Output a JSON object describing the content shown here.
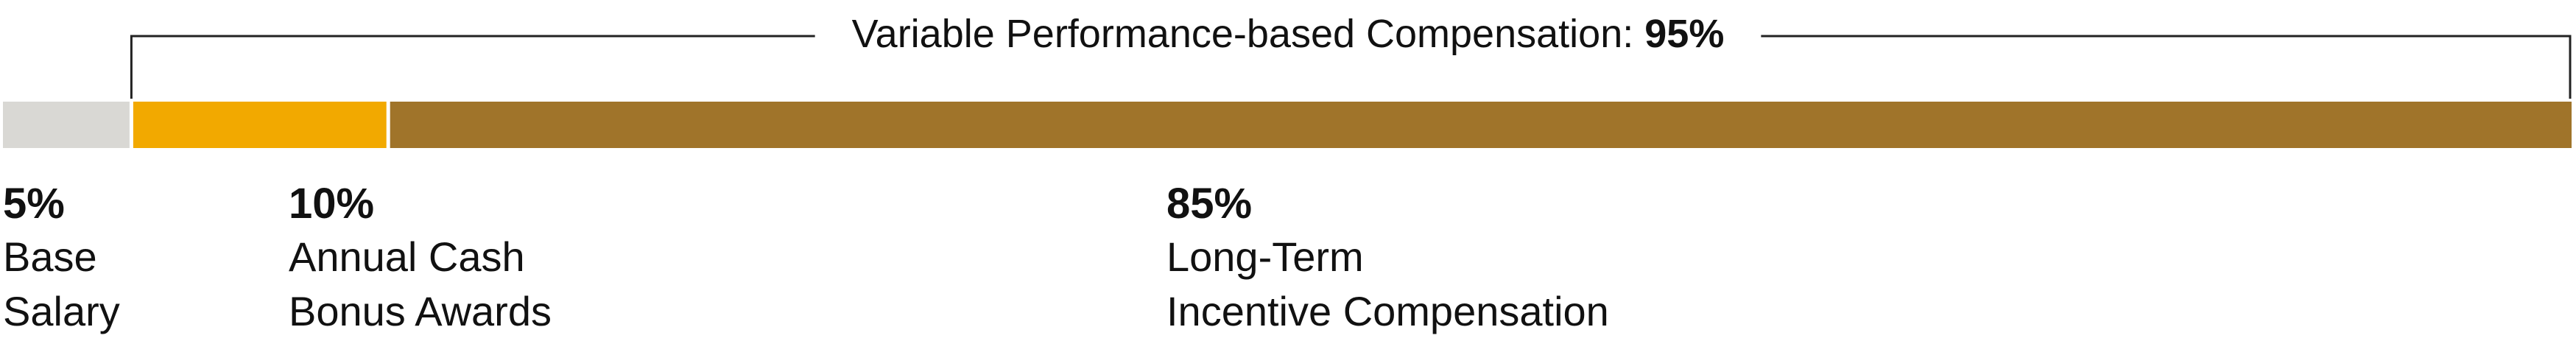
{
  "chart_data": {
    "type": "stacked-bar",
    "categories": [
      [
        "Base",
        "Salary"
      ],
      [
        "Annual Cash",
        "Bonus Awards"
      ],
      [
        "Long-Term",
        "Incentive Compensation"
      ]
    ],
    "values": [
      5,
      10,
      85
    ],
    "value_labels": [
      "5%",
      "10%",
      "85%"
    ],
    "colors": [
      "#d9d8d4",
      "#f2a900",
      "#a0742a"
    ],
    "xlim": [
      0,
      100
    ],
    "bracket": {
      "label": "Variable Performance-based Compensation:",
      "value": 95,
      "value_label": "95%"
    }
  }
}
